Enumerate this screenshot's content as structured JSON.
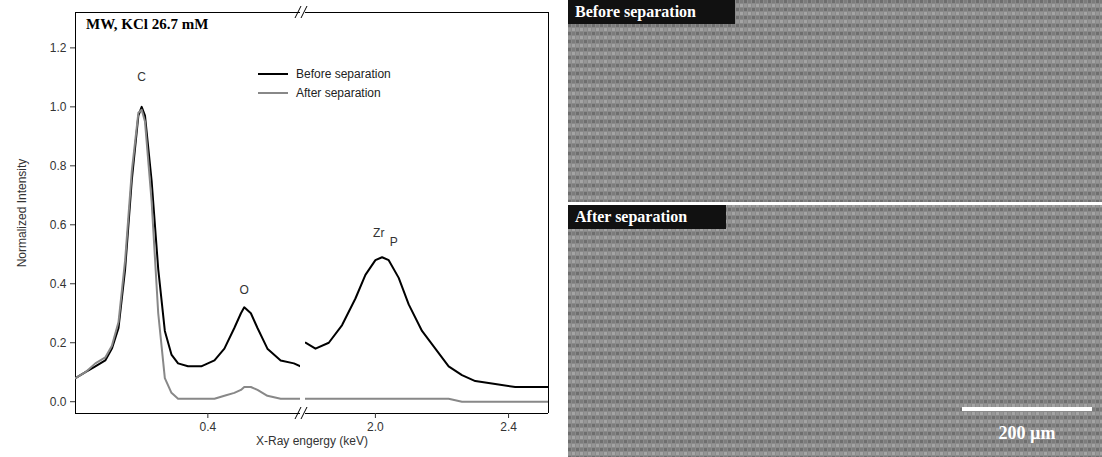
{
  "chart_data": {
    "type": "line",
    "title": "MW, KCl 26.7 mM",
    "xlabel": "X-Ray engergy (keV)",
    "ylabel": "Normalized Intensity",
    "ylim": [
      -0.04,
      1.32
    ],
    "yticks": [
      {
        "value": 0,
        "label": "0.0"
      },
      0.2,
      0.4,
      0.6,
      0.8,
      {
        "value": 1,
        "label": "1.0"
      },
      1.2
    ],
    "x_segments": [
      {
        "xlim": [
          0,
          0.68
        ],
        "xticks": [
          0.4
        ]
      },
      {
        "xlim": [
          1.79,
          2.52
        ],
        "xticks": [
          {
            "value": 2,
            "label": "2.0"
          },
          2.4
        ]
      }
    ],
    "grid": false,
    "legend": "top-right",
    "series": [
      {
        "name": "Before separation",
        "color": "#000000",
        "segments": [
          {
            "x": [
              0,
              0.03,
              0.06,
              0.09,
              0.11,
              0.13,
              0.15,
              0.17,
              0.19,
              0.2,
              0.21,
              0.23,
              0.25,
              0.27,
              0.29,
              0.31,
              0.34,
              0.38,
              0.42,
              0.45,
              0.48,
              0.5,
              0.51,
              0.53,
              0.55,
              0.58,
              0.62,
              0.66,
              0.68
            ],
            "values": [
              0.08,
              0.1,
              0.12,
              0.14,
              0.18,
              0.25,
              0.45,
              0.75,
              0.97,
              1.0,
              0.97,
              0.75,
              0.45,
              0.24,
              0.16,
              0.13,
              0.12,
              0.12,
              0.14,
              0.18,
              0.25,
              0.3,
              0.32,
              0.3,
              0.25,
              0.18,
              0.14,
              0.13,
              0.12
            ]
          },
          {
            "x": [
              1.79,
              1.82,
              1.86,
              1.9,
              1.94,
              1.97,
              2.0,
              2.02,
              2.04,
              2.07,
              2.1,
              2.14,
              2.18,
              2.22,
              2.26,
              2.3,
              2.36,
              2.42,
              2.48,
              2.52
            ],
            "values": [
              0.2,
              0.18,
              0.2,
              0.26,
              0.35,
              0.43,
              0.48,
              0.49,
              0.48,
              0.42,
              0.33,
              0.24,
              0.18,
              0.12,
              0.09,
              0.07,
              0.06,
              0.05,
              0.05,
              0.05
            ]
          }
        ]
      },
      {
        "name": "After separation",
        "color": "#888888",
        "segments": [
          {
            "x": [
              0,
              0.03,
              0.06,
              0.09,
              0.11,
              0.13,
              0.15,
              0.17,
              0.19,
              0.2,
              0.21,
              0.23,
              0.25,
              0.27,
              0.29,
              0.31,
              0.34,
              0.38,
              0.42,
              0.45,
              0.48,
              0.5,
              0.51,
              0.53,
              0.55,
              0.58,
              0.62,
              0.66,
              0.68
            ],
            "values": [
              0.08,
              0.1,
              0.13,
              0.15,
              0.19,
              0.27,
              0.48,
              0.78,
              0.98,
              0.99,
              0.95,
              0.68,
              0.3,
              0.08,
              0.03,
              0.01,
              0.01,
              0.01,
              0.01,
              0.02,
              0.03,
              0.04,
              0.05,
              0.05,
              0.04,
              0.02,
              0.01,
              0.01,
              0.01
            ]
          },
          {
            "x": [
              1.79,
              1.82,
              1.86,
              1.9,
              1.94,
              1.97,
              2.0,
              2.02,
              2.04,
              2.07,
              2.1,
              2.14,
              2.18,
              2.22,
              2.26,
              2.3,
              2.36,
              2.42,
              2.48,
              2.52
            ],
            "values": [
              0.01,
              0.01,
              0.01,
              0.01,
              0.01,
              0.01,
              0.01,
              0.01,
              0.01,
              0.01,
              0.01,
              0.01,
              0.01,
              0.01,
              0,
              0,
              0,
              0,
              0,
              0
            ]
          }
        ]
      }
    ],
    "annotations": [
      {
        "text": "C",
        "x": 0.2,
        "y": 1.1
      },
      {
        "text": "O",
        "x": 0.51,
        "y": 0.38
      },
      {
        "text": "Zr",
        "x": 2.01,
        "y": 0.57
      },
      {
        "text": "P",
        "x": 2.055,
        "y": 0.54
      }
    ]
  },
  "images": [
    {
      "label": "Before separation"
    },
    {
      "label": "After separation",
      "scale_bar": "200 µm"
    }
  ]
}
